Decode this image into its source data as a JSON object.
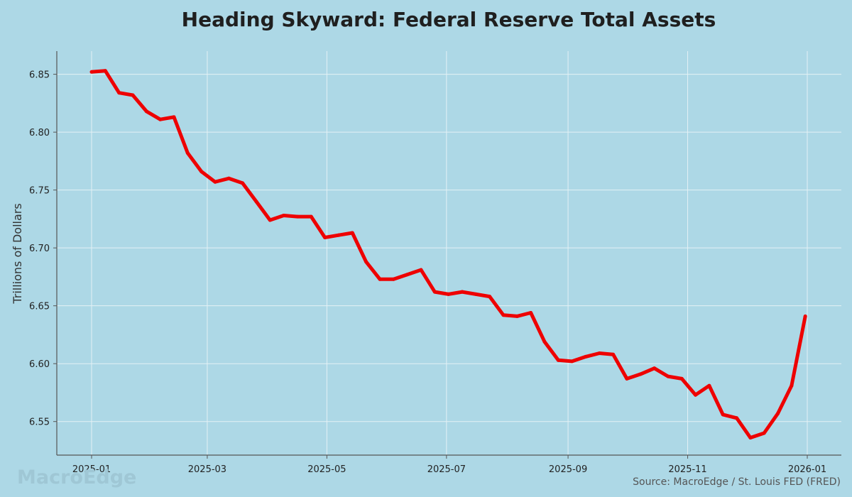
{
  "chart_data": {
    "type": "line",
    "title": "Heading Skyward: Federal Reserve Total Assets",
    "xlabel": "",
    "ylabel": "Trillions of Dollars",
    "x": [
      "2025-01-01",
      "2025-01-08",
      "2025-01-15",
      "2025-01-22",
      "2025-01-29",
      "2025-02-05",
      "2025-02-12",
      "2025-02-19",
      "2025-02-26",
      "2025-03-05",
      "2025-03-12",
      "2025-03-19",
      "2025-03-26",
      "2025-04-02",
      "2025-04-09",
      "2025-04-16",
      "2025-04-23",
      "2025-04-30",
      "2025-05-07",
      "2025-05-14",
      "2025-05-21",
      "2025-05-28",
      "2025-06-04",
      "2025-06-11",
      "2025-06-18",
      "2025-06-25",
      "2025-07-02",
      "2025-07-09",
      "2025-07-16",
      "2025-07-23",
      "2025-07-30",
      "2025-08-06",
      "2025-08-13",
      "2025-08-20",
      "2025-08-27",
      "2025-09-03",
      "2025-09-10",
      "2025-09-17",
      "2025-09-24",
      "2025-10-01",
      "2025-10-08",
      "2025-10-15",
      "2025-10-22",
      "2025-10-29",
      "2025-11-05",
      "2025-11-12",
      "2025-11-19",
      "2025-11-26",
      "2025-12-03",
      "2025-12-10",
      "2025-12-17",
      "2025-12-24",
      "2025-12-31"
    ],
    "series": [
      {
        "color": "#ee0000",
        "values": [
          6.852,
          6.853,
          6.834,
          6.832,
          6.818,
          6.811,
          6.813,
          6.782,
          6.766,
          6.757,
          6.76,
          6.756,
          6.74,
          6.724,
          6.728,
          6.727,
          6.727,
          6.709,
          6.711,
          6.713,
          6.688,
          6.673,
          6.673,
          6.677,
          6.681,
          6.662,
          6.66,
          6.662,
          6.66,
          6.658,
          6.642,
          6.641,
          6.644,
          6.619,
          6.603,
          6.602,
          6.606,
          6.609,
          6.608,
          6.587,
          6.591,
          6.596,
          6.589,
          6.587,
          6.573,
          6.581,
          6.556,
          6.553,
          6.536,
          6.54,
          6.557,
          6.581,
          6.641
        ]
      }
    ],
    "ylim": [
      6.521,
      6.87
    ],
    "y_ticks": [
      6.55,
      6.6,
      6.65,
      6.7,
      6.75,
      6.8,
      6.85
    ],
    "y_tick_labels": [
      "6.55",
      "6.60",
      "6.65",
      "6.70",
      "6.75",
      "6.80",
      "6.85"
    ],
    "x_ticks": [
      "2025-01-01",
      "2025-03-01",
      "2025-05-01",
      "2025-07-01",
      "2025-09-01",
      "2025-11-01",
      "2026-01-01"
    ],
    "x_tick_labels": [
      "2025-01",
      "2025-03",
      "2025-05",
      "2025-07",
      "2025-09",
      "2025-11",
      "2026-01"
    ],
    "grid": true,
    "background": "#add8e6",
    "grid_color": "#e4f1f5",
    "source": "Source: MacroEdge / St. Louis FED (FRED)",
    "watermark": "MacroEdge"
  }
}
